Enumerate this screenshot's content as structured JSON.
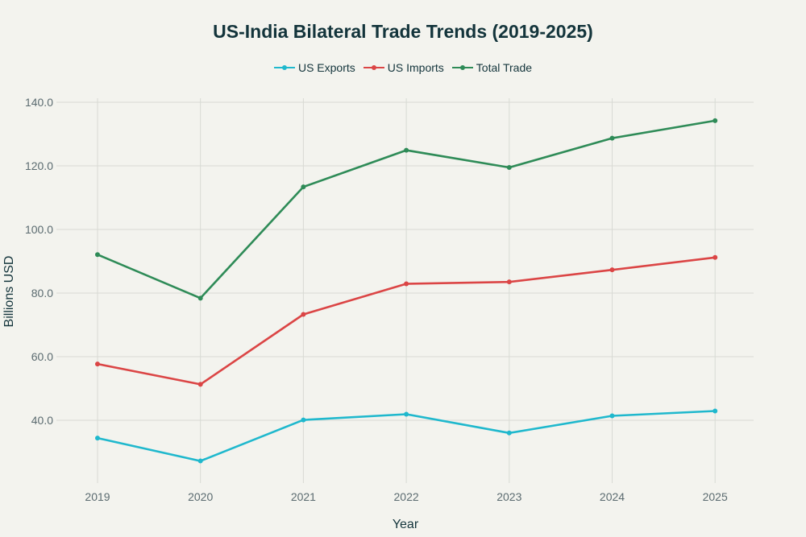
{
  "chart_data": {
    "type": "line",
    "title": "US-India Bilateral Trade Trends (2019-2025)",
    "xlabel": "Year",
    "ylabel": "Billions USD",
    "x": [
      "2019",
      "2020",
      "2021",
      "2022",
      "2023",
      "2024",
      "2025"
    ],
    "y_ticks": [
      "40.0",
      "60.0",
      "80.0",
      "100.0",
      "120.0",
      "140.0"
    ],
    "ylim": [
      20,
      140
    ],
    "grid": true,
    "legend_position": "top-center",
    "series": [
      {
        "name": "US Exports",
        "color": "#1fb8cd",
        "values": [
          34.4,
          27.2,
          40.1,
          41.9,
          36.0,
          41.4,
          42.9
        ]
      },
      {
        "name": "US Imports",
        "color": "#db4545",
        "values": [
          57.7,
          51.3,
          73.3,
          82.9,
          83.5,
          87.3,
          91.2
        ]
      },
      {
        "name": "Total Trade",
        "color": "#2e8b57",
        "values": [
          92.1,
          78.4,
          113.4,
          124.9,
          119.5,
          128.7,
          134.2
        ]
      }
    ]
  }
}
